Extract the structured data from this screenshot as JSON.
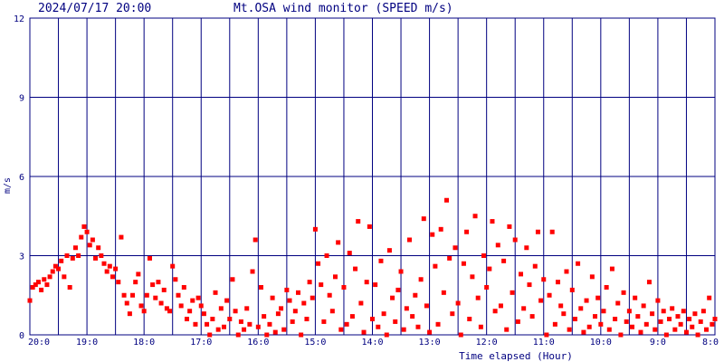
{
  "header": {
    "timestamp": "2024/07/17 20:00",
    "title": "Mt.OSA wind monitor (SPEED m/s)"
  },
  "colors": {
    "axis": "#000080",
    "points": "#ff0000",
    "background": "#ffffff"
  },
  "chart_data": {
    "type": "scatter",
    "title": "Mt.OSA wind monitor (SPEED m/s)",
    "xlabel": "Time elapsed (Hour)",
    "ylabel": "m/s",
    "ylim": [
      0,
      12
    ],
    "y_ticks": [
      "0",
      "3",
      "6",
      "9",
      "12"
    ],
    "x_ticks": [
      "20:0",
      "19:0",
      "18:0",
      "17:0",
      "16:0",
      "15:0",
      "14:0",
      "13:0",
      "12:0",
      "11:0",
      "10:0",
      "9:0",
      "8:0"
    ],
    "grid": true,
    "x_unit": "hours elapsed from 20:00 (0 = 20:00, 12 = 8:00)",
    "series": [
      {
        "color": "#ff0000",
        "points": [
          [
            0.0,
            1.3
          ],
          [
            0.05,
            1.8
          ],
          [
            0.1,
            1.9
          ],
          [
            0.15,
            2.0
          ],
          [
            0.2,
            1.7
          ],
          [
            0.25,
            2.1
          ],
          [
            0.3,
            1.9
          ],
          [
            0.35,
            2.2
          ],
          [
            0.4,
            2.4
          ],
          [
            0.45,
            2.6
          ],
          [
            0.5,
            2.5
          ],
          [
            0.55,
            2.8
          ],
          [
            0.6,
            2.2
          ],
          [
            0.65,
            3.0
          ],
          [
            0.7,
            1.8
          ],
          [
            0.75,
            2.9
          ],
          [
            0.8,
            3.3
          ],
          [
            0.85,
            3.0
          ],
          [
            0.9,
            3.7
          ],
          [
            0.95,
            4.1
          ],
          [
            1.0,
            3.9
          ],
          [
            1.05,
            3.4
          ],
          [
            1.1,
            3.6
          ],
          [
            1.15,
            2.9
          ],
          [
            1.2,
            3.3
          ],
          [
            1.25,
            3.0
          ],
          [
            1.3,
            2.7
          ],
          [
            1.35,
            2.4
          ],
          [
            1.4,
            2.6
          ],
          [
            1.45,
            2.2
          ],
          [
            1.5,
            2.5
          ],
          [
            1.55,
            2.0
          ],
          [
            1.6,
            3.7
          ],
          [
            1.65,
            1.5
          ],
          [
            1.7,
            1.2
          ],
          [
            1.75,
            0.8
          ],
          [
            1.8,
            1.5
          ],
          [
            1.85,
            2.0
          ],
          [
            1.9,
            2.3
          ],
          [
            1.95,
            1.1
          ],
          [
            2.0,
            0.9
          ],
          [
            2.05,
            1.5
          ],
          [
            2.1,
            2.9
          ],
          [
            2.15,
            1.9
          ],
          [
            2.2,
            1.4
          ],
          [
            2.25,
            2.0
          ],
          [
            2.3,
            1.2
          ],
          [
            2.35,
            1.7
          ],
          [
            2.4,
            1.0
          ],
          [
            2.45,
            0.9
          ],
          [
            2.5,
            2.6
          ],
          [
            2.55,
            2.1
          ],
          [
            2.6,
            1.5
          ],
          [
            2.65,
            1.1
          ],
          [
            2.7,
            1.8
          ],
          [
            2.75,
            0.6
          ],
          [
            2.8,
            0.9
          ],
          [
            2.85,
            1.3
          ],
          [
            2.9,
            0.4
          ],
          [
            2.95,
            1.4
          ],
          [
            3.0,
            1.1
          ],
          [
            3.05,
            0.8
          ],
          [
            3.1,
            0.4
          ],
          [
            3.15,
            0.0
          ],
          [
            3.2,
            0.6
          ],
          [
            3.25,
            1.6
          ],
          [
            3.3,
            0.2
          ],
          [
            3.35,
            1.0
          ],
          [
            3.4,
            0.3
          ],
          [
            3.45,
            1.3
          ],
          [
            3.5,
            0.6
          ],
          [
            3.55,
            2.1
          ],
          [
            3.6,
            0.9
          ],
          [
            3.65,
            0.0
          ],
          [
            3.7,
            0.5
          ],
          [
            3.75,
            0.2
          ],
          [
            3.8,
            1.0
          ],
          [
            3.85,
            0.4
          ],
          [
            3.9,
            2.4
          ],
          [
            3.95,
            3.6
          ],
          [
            4.0,
            0.3
          ],
          [
            4.05,
            1.8
          ],
          [
            4.1,
            0.7
          ],
          [
            4.15,
            0.0
          ],
          [
            4.2,
            0.4
          ],
          [
            4.25,
            1.4
          ],
          [
            4.3,
            0.1
          ],
          [
            4.35,
            0.8
          ],
          [
            4.4,
            1.0
          ],
          [
            4.45,
            0.2
          ],
          [
            4.5,
            1.7
          ],
          [
            4.55,
            1.3
          ],
          [
            4.6,
            0.5
          ],
          [
            4.65,
            0.9
          ],
          [
            4.7,
            1.6
          ],
          [
            4.75,
            0.0
          ],
          [
            4.8,
            1.2
          ],
          [
            4.85,
            0.6
          ],
          [
            4.9,
            2.0
          ],
          [
            4.95,
            1.4
          ],
          [
            5.0,
            4.0
          ],
          [
            5.05,
            2.7
          ],
          [
            5.1,
            1.9
          ],
          [
            5.15,
            0.5
          ],
          [
            5.2,
            3.0
          ],
          [
            5.25,
            1.5
          ],
          [
            5.3,
            0.9
          ],
          [
            5.35,
            2.2
          ],
          [
            5.4,
            3.5
          ],
          [
            5.45,
            0.2
          ],
          [
            5.5,
            1.8
          ],
          [
            5.55,
            0.4
          ],
          [
            5.6,
            3.1
          ],
          [
            5.65,
            0.7
          ],
          [
            5.7,
            2.5
          ],
          [
            5.75,
            4.3
          ],
          [
            5.8,
            1.2
          ],
          [
            5.85,
            0.1
          ],
          [
            5.9,
            2.0
          ],
          [
            5.95,
            4.1
          ],
          [
            6.0,
            0.6
          ],
          [
            6.05,
            1.9
          ],
          [
            6.1,
            0.3
          ],
          [
            6.15,
            2.8
          ],
          [
            6.2,
            0.8
          ],
          [
            6.25,
            0.0
          ],
          [
            6.3,
            3.2
          ],
          [
            6.35,
            1.4
          ],
          [
            6.4,
            0.5
          ],
          [
            6.45,
            1.7
          ],
          [
            6.5,
            2.4
          ],
          [
            6.55,
            0.2
          ],
          [
            6.6,
            1.0
          ],
          [
            6.65,
            3.6
          ],
          [
            6.7,
            0.7
          ],
          [
            6.75,
            1.5
          ],
          [
            6.8,
            0.3
          ],
          [
            6.85,
            2.1
          ],
          [
            6.9,
            4.4
          ],
          [
            6.95,
            1.1
          ],
          [
            7.0,
            0.1
          ],
          [
            7.05,
            3.8
          ],
          [
            7.1,
            2.6
          ],
          [
            7.15,
            0.4
          ],
          [
            7.2,
            4.0
          ],
          [
            7.25,
            1.6
          ],
          [
            7.3,
            5.1
          ],
          [
            7.35,
            2.9
          ],
          [
            7.4,
            0.8
          ],
          [
            7.45,
            3.3
          ],
          [
            7.5,
            1.2
          ],
          [
            7.55,
            0.0
          ],
          [
            7.6,
            2.7
          ],
          [
            7.65,
            3.9
          ],
          [
            7.7,
            0.6
          ],
          [
            7.75,
            2.2
          ],
          [
            7.8,
            4.5
          ],
          [
            7.85,
            1.4
          ],
          [
            7.9,
            0.3
          ],
          [
            7.95,
            3.0
          ],
          [
            8.0,
            1.8
          ],
          [
            8.05,
            2.5
          ],
          [
            8.1,
            4.3
          ],
          [
            8.15,
            0.9
          ],
          [
            8.2,
            3.4
          ],
          [
            8.25,
            1.1
          ],
          [
            8.3,
            2.8
          ],
          [
            8.35,
            0.2
          ],
          [
            8.4,
            4.1
          ],
          [
            8.45,
            1.6
          ],
          [
            8.5,
            3.6
          ],
          [
            8.55,
            0.5
          ],
          [
            8.6,
            2.3
          ],
          [
            8.65,
            1.0
          ],
          [
            8.7,
            3.3
          ],
          [
            8.75,
            1.9
          ],
          [
            8.8,
            0.7
          ],
          [
            8.85,
            2.6
          ],
          [
            8.9,
            3.9
          ],
          [
            8.95,
            1.3
          ],
          [
            9.0,
            2.1
          ],
          [
            9.05,
            0.0
          ],
          [
            9.1,
            1.5
          ],
          [
            9.15,
            3.9
          ],
          [
            9.2,
            0.4
          ],
          [
            9.25,
            2.0
          ],
          [
            9.3,
            1.1
          ],
          [
            9.35,
            0.8
          ],
          [
            9.4,
            2.4
          ],
          [
            9.45,
            0.2
          ],
          [
            9.5,
            1.7
          ],
          [
            9.55,
            0.6
          ],
          [
            9.6,
            2.7
          ],
          [
            9.65,
            1.0
          ],
          [
            9.7,
            0.1
          ],
          [
            9.75,
            1.3
          ],
          [
            9.8,
            0.3
          ],
          [
            9.85,
            2.2
          ],
          [
            9.9,
            0.7
          ],
          [
            9.95,
            1.4
          ],
          [
            10.0,
            0.4
          ],
          [
            10.05,
            0.9
          ],
          [
            10.1,
            1.8
          ],
          [
            10.15,
            0.2
          ],
          [
            10.2,
            2.5
          ],
          [
            10.25,
            0.6
          ],
          [
            10.3,
            1.2
          ],
          [
            10.35,
            0.0
          ],
          [
            10.4,
            1.6
          ],
          [
            10.45,
            0.5
          ],
          [
            10.5,
            0.9
          ],
          [
            10.55,
            0.3
          ],
          [
            10.6,
            1.4
          ],
          [
            10.65,
            0.7
          ],
          [
            10.7,
            0.1
          ],
          [
            10.75,
            1.1
          ],
          [
            10.8,
            0.4
          ],
          [
            10.85,
            2.0
          ],
          [
            10.9,
            0.8
          ],
          [
            10.95,
            0.2
          ],
          [
            11.0,
            1.3
          ],
          [
            11.05,
            0.5
          ],
          [
            11.1,
            0.9
          ],
          [
            11.15,
            0.0
          ],
          [
            11.2,
            0.6
          ],
          [
            11.25,
            1.0
          ],
          [
            11.3,
            0.2
          ],
          [
            11.35,
            0.7
          ],
          [
            11.4,
            0.4
          ],
          [
            11.45,
            0.9
          ],
          [
            11.5,
            0.1
          ],
          [
            11.55,
            0.6
          ],
          [
            11.6,
            0.3
          ],
          [
            11.65,
            0.8
          ],
          [
            11.7,
            0.0
          ],
          [
            11.75,
            0.5
          ],
          [
            11.8,
            0.9
          ],
          [
            11.85,
            0.2
          ],
          [
            11.9,
            1.4
          ],
          [
            11.95,
            0.4
          ],
          [
            12.0,
            0.6
          ]
        ]
      }
    ]
  }
}
